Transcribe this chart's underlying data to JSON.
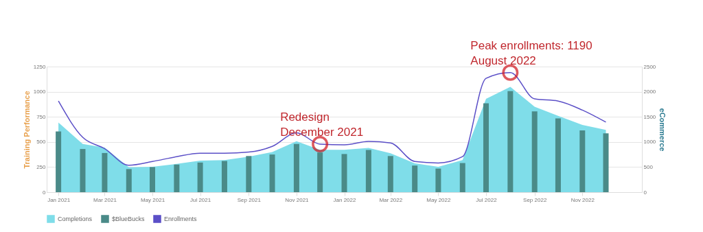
{
  "chart_data": {
    "type": "bar",
    "x": [
      "2021-01",
      "2021-02",
      "2021-03",
      "2021-04",
      "2021-05",
      "2021-06",
      "2021-07",
      "2021-08",
      "2021-09",
      "2021-10",
      "2021-11",
      "2021-12",
      "2022-01",
      "2022-02",
      "2022-03",
      "2022-04",
      "2022-05",
      "2022-06",
      "2022-07",
      "2022-08",
      "2022-09",
      "2022-10",
      "2022-11",
      "2022-12"
    ],
    "series": [
      {
        "name": "Completions",
        "type": "area",
        "color": "#7fdde9",
        "values": [
          693,
          480,
          444,
          248,
          253,
          282,
          314,
          320,
          354,
          399,
          508,
          422,
          422,
          440,
          388,
          287,
          253,
          320,
          929,
          1049,
          850,
          760,
          670,
          620
        ]
      },
      {
        "name": "$BlueBucks",
        "axis": "y2",
        "color": "#4a8a88",
        "values": [
          1210,
          860,
          780,
          460,
          500,
          550,
          590,
          620,
          720,
          750,
          960,
          790,
          760,
          840,
          720,
          530,
          470,
          580,
          1770,
          2010,
          1610,
          1470,
          1230,
          1170
        ]
      },
      {
        "name": "Enrollments",
        "type": "line",
        "color": "#5b4fc7",
        "values": [
          907,
          546,
          433,
          268,
          305,
          354,
          388,
          388,
          399,
          456,
          591,
          478,
          471,
          505,
          490,
          305,
          291,
          354,
          1133,
          1190,
          929,
          907,
          817,
          697
        ]
      }
    ],
    "xlim": [
      "2020-12-17",
      "2023-01-16"
    ],
    "xticks": [
      {
        "value": "2021-01",
        "label": "Jan 2021"
      },
      {
        "value": "2021-03",
        "label": "Mar 2021"
      },
      {
        "value": "2021-05",
        "label": "May 2021"
      },
      {
        "value": "2021-07",
        "label": "Jul 2021"
      },
      {
        "value": "2021-09",
        "label": "Sep 2021"
      },
      {
        "value": "2021-11",
        "label": "Nov 2021"
      },
      {
        "value": "2022-01",
        "label": "Jan 2022"
      },
      {
        "value": "2022-03",
        "label": "Mar 2022"
      },
      {
        "value": "2022-05",
        "label": "May 2022"
      },
      {
        "value": "2022-07",
        "label": "Jul 2022"
      },
      {
        "value": "2022-09",
        "label": "Sep 2022"
      },
      {
        "value": "2022-11",
        "label": "Nov 2022"
      }
    ],
    "ylabel": "Training Performance",
    "y2label": "eCommerce",
    "ylim": [
      0,
      1250
    ],
    "yticks": [
      0,
      250,
      500,
      750,
      1000,
      1250
    ],
    "y2lim": [
      0,
      2500
    ],
    "y2ticks": [
      0,
      500,
      1000,
      1500,
      2000,
      2500
    ],
    "grid": "y",
    "legend": "bottom",
    "annotations": [
      {
        "text": "Redesign\nDecember 2021",
        "x": "2021-12",
        "y": 478
      },
      {
        "text": "Peak enrollments: 1190\nAugust 2022",
        "x": "2022-08",
        "y": 1190
      }
    ]
  }
}
